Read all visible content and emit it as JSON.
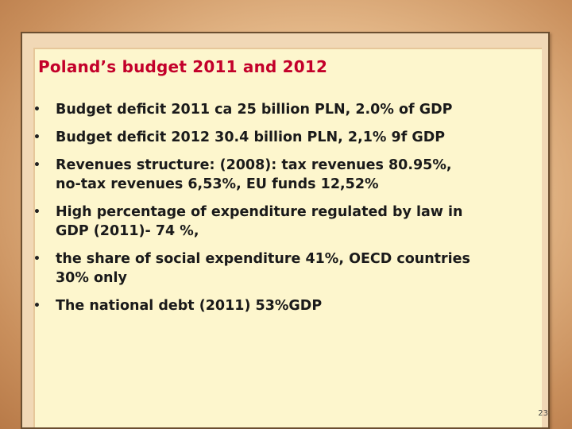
{
  "slide": {
    "title": "Poland’s budget 2011 and 2012",
    "bullet_marker": "•",
    "bullets": [
      "Budget deficit  2011 ca 25 billion PLN, 2.0% of GDP",
      "Budget deficit  2012 30.4 billion PLN, 2,1% 9f GDP",
      "Revenues structure: (2008): tax revenues 80.95%,\nno-tax revenues 6,53%, EU funds 12,52%",
      "High percentage of expenditure regulated by law in\nGDP (2011)- 74 %,",
      " the share of social expenditure 41%, OECD countries\n30% only",
      "The national debt (2011) 53%GDP"
    ],
    "page_number": "23"
  },
  "colors": {
    "title": "#c3002a",
    "panel": "#fdf6cd",
    "frame_border": "#6b4e30",
    "background": "#e6bb8c"
  }
}
